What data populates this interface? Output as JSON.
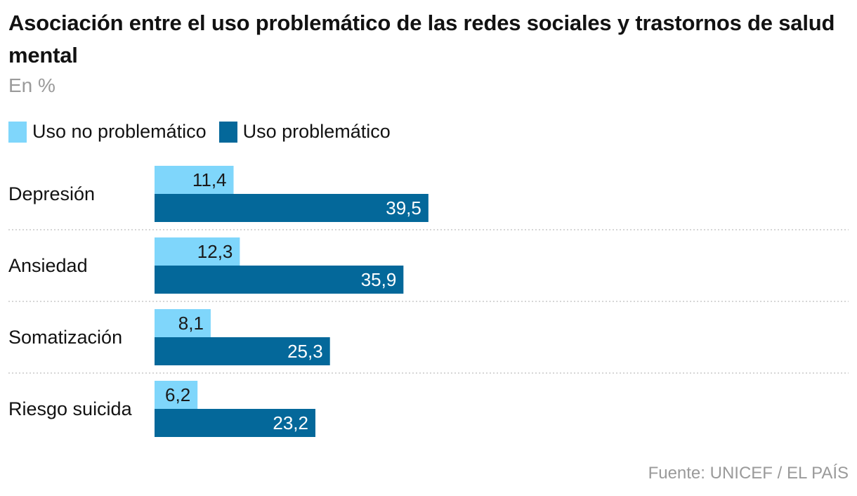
{
  "title": "Asociación entre el uso problemático de las redes sociales y trastornos de salud mental",
  "subtitle": "En %",
  "source": "Fuente: UNICEF / EL PAÍS",
  "colors": {
    "light": "#7fd6fb",
    "dark": "#04689a",
    "grid": "#c9c9c9"
  },
  "chart_data": {
    "type": "bar",
    "orientation": "horizontal",
    "categories": [
      "Depresión",
      "Ansiedad",
      "Somatización",
      "Riesgo suicida"
    ],
    "series": [
      {
        "name": "Uso no problemático",
        "values": [
          11.4,
          12.3,
          8.1,
          6.2
        ],
        "labels": [
          "11,4",
          "12,3",
          "8,1",
          "6,2"
        ]
      },
      {
        "name": "Uso problemático",
        "values": [
          39.5,
          35.9,
          25.3,
          23.2
        ],
        "labels": [
          "39,5",
          "35,9",
          "25,3",
          "23,2"
        ]
      }
    ],
    "xlim": [
      0,
      100
    ],
    "legend": "top-left",
    "grid": false
  }
}
